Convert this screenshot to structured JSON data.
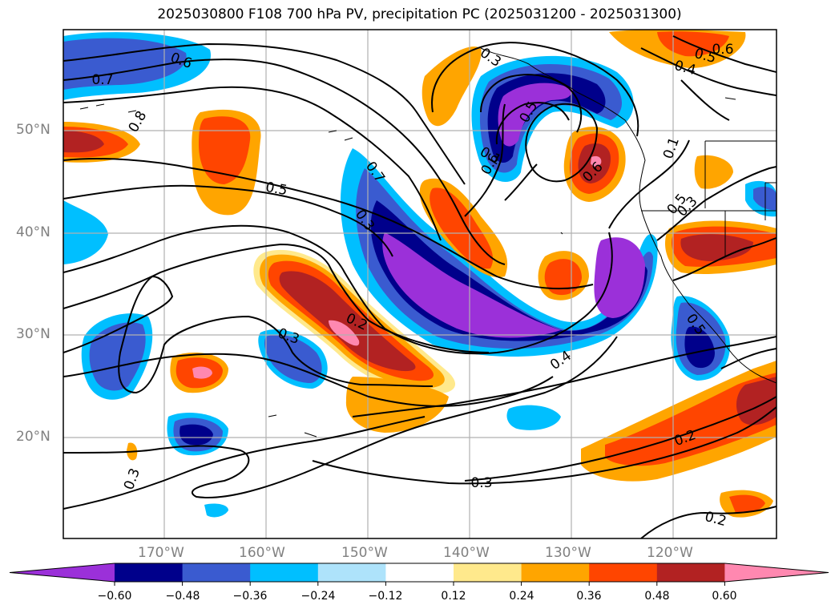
{
  "title": "2025030800 F108 700 hPa PV, precipitation PC (2025031200 - 2025031300)",
  "map": {
    "lat_labels": [
      "50°N",
      "40°N",
      "30°N",
      "20°N"
    ],
    "lon_labels": [
      "170°W",
      "160°W",
      "150°W",
      "140°W",
      "130°W",
      "120°W"
    ],
    "contour_labels": [
      "0.6",
      "0.7",
      "0.8",
      "0.3",
      "0.6",
      "0.5",
      "0.4",
      "0.5",
      "0.6",
      "0.5",
      "0.6",
      "0.1",
      "0.7",
      "0.5",
      "0.3",
      "0.1",
      "0.3",
      "0.2",
      "0.3",
      "0.4",
      "0.5",
      "0.2",
      "0.3",
      "0.3",
      "0.2"
    ]
  },
  "colorbar": {
    "ticks": [
      "−0.60",
      "−0.48",
      "−0.36",
      "−0.24",
      "−0.12",
      "0.12",
      "0.24",
      "0.36",
      "0.48",
      "0.60"
    ],
    "colors": [
      "#9b30d9",
      "#00008b",
      "#3a5bd0",
      "#00bfff",
      "#aee3fb",
      "#ffffff",
      "#ffe98c",
      "#ffa500",
      "#ff4500",
      "#b22222",
      "#ff88b0"
    ]
  }
}
